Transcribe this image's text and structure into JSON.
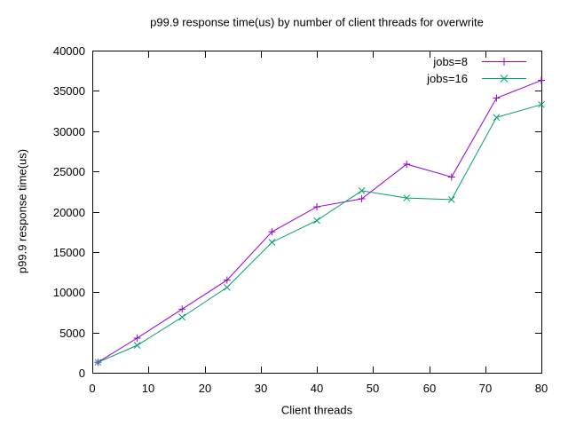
{
  "title": "p99.9 response time(us) by number of client threads for overwrite",
  "chart_data": {
    "type": "line",
    "title": "p99.9 response time(us) by number of client threads for overwrite",
    "xlabel": "Client threads",
    "ylabel": "p99.9 response time(us)",
    "x": [
      1,
      8,
      16,
      24,
      32,
      40,
      48,
      56,
      64,
      72,
      80
    ],
    "series": [
      {
        "name": "jobs=8",
        "color": "#9400D3",
        "marker": "plus",
        "values": [
          1300,
          4300,
          7900,
          11500,
          17500,
          20600,
          21600,
          25900,
          24300,
          34100,
          36300
        ]
      },
      {
        "name": "jobs=16",
        "color": "#009E73",
        "marker": "cross",
        "values": [
          1300,
          3400,
          6900,
          10600,
          16200,
          18900,
          22600,
          21700,
          21500,
          31700,
          33300
        ]
      }
    ],
    "xlim": [
      0,
      80
    ],
    "ylim": [
      0,
      40000
    ],
    "xticks": [
      0,
      10,
      20,
      30,
      40,
      50,
      60,
      70,
      80
    ],
    "yticks": [
      0,
      5000,
      10000,
      15000,
      20000,
      25000,
      30000,
      35000,
      40000
    ],
    "grid": false,
    "legend_position": "top-right-inside",
    "border_color": "#000000",
    "background": "#ffffff",
    "text_color": "#000000"
  }
}
